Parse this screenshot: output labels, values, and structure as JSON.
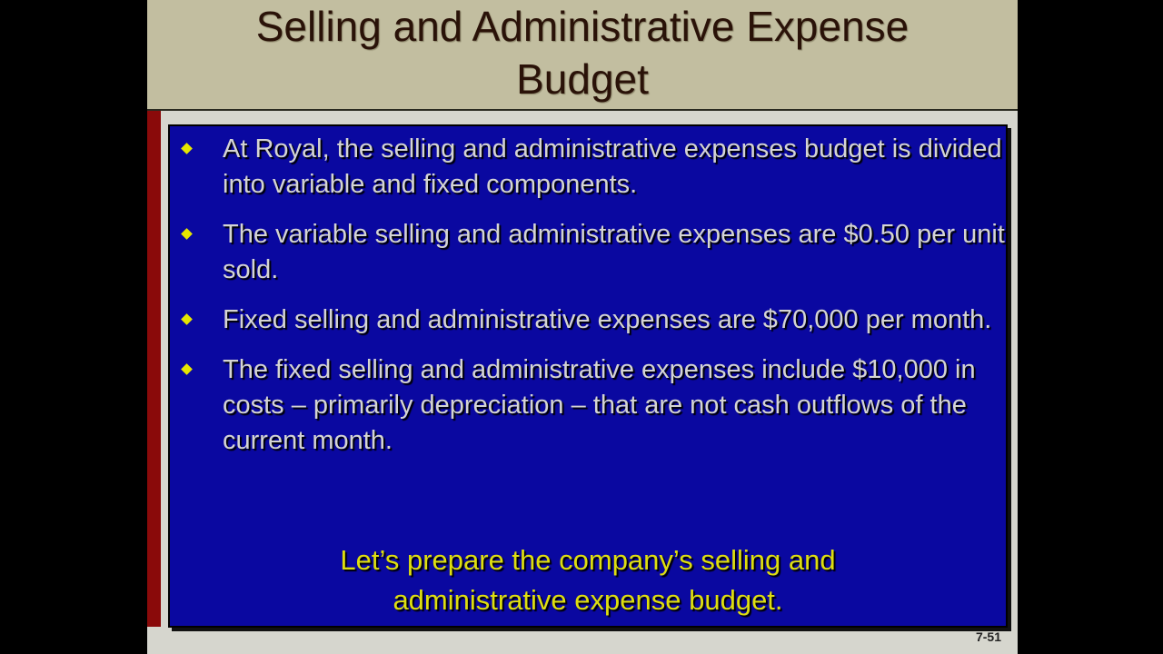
{
  "slide": {
    "title_line1": "Selling and Administrative Expense",
    "title_line2": "Budget",
    "bullets": [
      "At Royal, the selling and administrative expenses budget is divided into variable and fixed components.",
      "The variable selling and administrative expenses are $0.50 per unit sold.",
      "Fixed selling and administrative expenses are $70,000 per month.",
      "The fixed selling and administrative expenses include $10,000 in costs – primarily depreciation – that are not cash outflows of the current month."
    ],
    "callout_line1": "Let’s prepare the company’s selling and",
    "callout_line2": "administrative expense budget.",
    "page_number": "7-51",
    "bullet_icon": "diamond-icon",
    "colors": {
      "panel": "#0a08a0",
      "callout": "#dede10",
      "bullet": "#e6e600",
      "accent_bar": "#8a0a0a"
    }
  }
}
